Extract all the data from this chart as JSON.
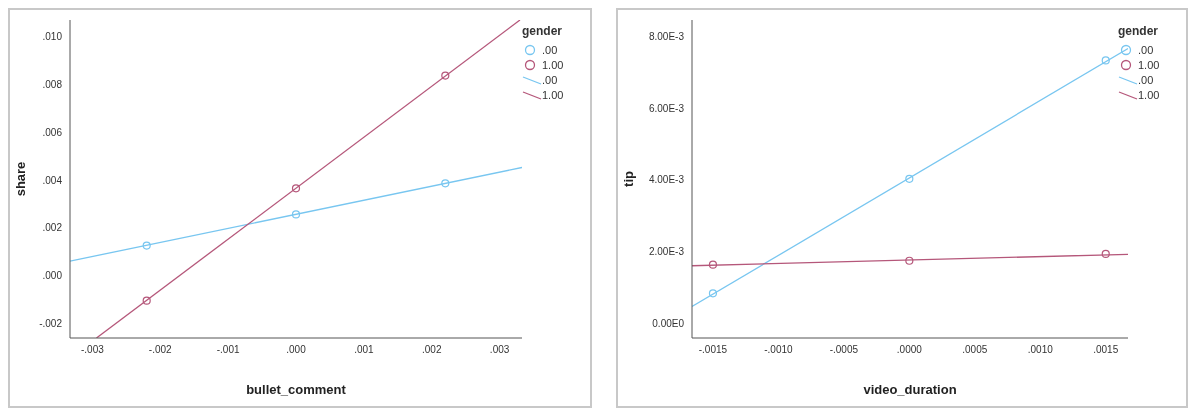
{
  "chart_data": [
    {
      "type": "scatter",
      "xlabel": "bullet_comment",
      "ylabel": "share",
      "legend_title": "gender",
      "legend": "top right",
      "grid": false,
      "xlim": [
        -0.00333,
        0.00333
      ],
      "ylim": [
        -0.0026,
        0.01068
      ],
      "xticks": [
        {
          "value": -0.003,
          "label": "-.003"
        },
        {
          "value": -0.002,
          "label": "-.002"
        },
        {
          "value": -0.001,
          "label": "-.001"
        },
        {
          "value": 0,
          "label": ".000"
        },
        {
          "value": 0.001,
          "label": ".001"
        },
        {
          "value": 0.002,
          "label": ".002"
        },
        {
          "value": 0.003,
          "label": ".003"
        }
      ],
      "yticks": [
        {
          "value": -0.002,
          "label": "-.002"
        },
        {
          "value": 0,
          "label": ".000"
        },
        {
          "value": 0.002,
          "label": ".002"
        },
        {
          "value": 0.004,
          "label": ".004"
        },
        {
          "value": 0.006,
          "label": ".006"
        },
        {
          "value": 0.008,
          "label": ".008"
        },
        {
          "value": 0.01,
          "label": ".010"
        }
      ],
      "series": [
        {
          "name": ".00",
          "marker": "circle",
          "color": "#78c6f0",
          "x": [
            -0.0022,
            0,
            0.0022
          ],
          "values": [
            0.00126,
            0.00256,
            0.00386
          ]
        },
        {
          "name": "1.00",
          "marker": "circle",
          "color": "#b5577a",
          "x": [
            -0.0022,
            0,
            0.0022
          ],
          "values": [
            -0.00104,
            0.00365,
            0.00836
          ]
        },
        {
          "name": ".00",
          "type": "line",
          "marker": "none",
          "color": "#78c6f0",
          "x": [
            -0.00333,
            0.00333
          ],
          "values": [
            0.00061,
            0.00452
          ]
        },
        {
          "name": "1.00",
          "type": "line",
          "marker": "none",
          "color": "#b5577a",
          "x": [
            -0.00294,
            0.0033
          ],
          "values": [
            -0.0026,
            0.01068
          ]
        }
      ]
    },
    {
      "type": "scatter",
      "xlabel": "video_duration",
      "ylabel": "tip",
      "legend_title": "gender",
      "legend": "top right",
      "grid": false,
      "xlim": [
        -0.00166,
        0.00167
      ],
      "ylim": [
        -0.00042,
        0.00847
      ],
      "xticks": [
        {
          "value": -0.0015,
          "label": "-.0015"
        },
        {
          "value": -0.001,
          "label": "-.0010"
        },
        {
          "value": -0.0005,
          "label": "-.0005"
        },
        {
          "value": 0,
          "label": ".0000"
        },
        {
          "value": 0.0005,
          "label": ".0005"
        },
        {
          "value": 0.001,
          "label": ".0010"
        },
        {
          "value": 0.0015,
          "label": ".0015"
        }
      ],
      "yticks": [
        {
          "value": 0,
          "label": "0.00E0"
        },
        {
          "value": 0.002,
          "label": "2.00E-3"
        },
        {
          "value": 0.004,
          "label": "4.00E-3"
        },
        {
          "value": 0.006,
          "label": "6.00E-3"
        },
        {
          "value": 0.008,
          "label": "8.00E-3"
        }
      ],
      "series": [
        {
          "name": ".00",
          "marker": "circle",
          "color": "#78c6f0",
          "x": [
            -0.0015,
            0,
            0.0015
          ],
          "values": [
            0.00083,
            0.00403,
            0.00734
          ]
        },
        {
          "name": "1.00",
          "marker": "circle",
          "color": "#b5577a",
          "x": [
            -0.0015,
            0,
            0.0015
          ],
          "values": [
            0.00163,
            0.00174,
            0.00193
          ]
        },
        {
          "name": ".00",
          "type": "line",
          "marker": "none",
          "color": "#78c6f0",
          "x": [
            -0.00166,
            0.00167
          ],
          "values": [
            0.00046,
            0.00767
          ]
        },
        {
          "name": "1.00",
          "type": "line",
          "marker": "none",
          "color": "#b5577a",
          "x": [
            -0.00166,
            0.00167
          ],
          "values": [
            0.0016,
            0.00192
          ]
        }
      ]
    }
  ]
}
